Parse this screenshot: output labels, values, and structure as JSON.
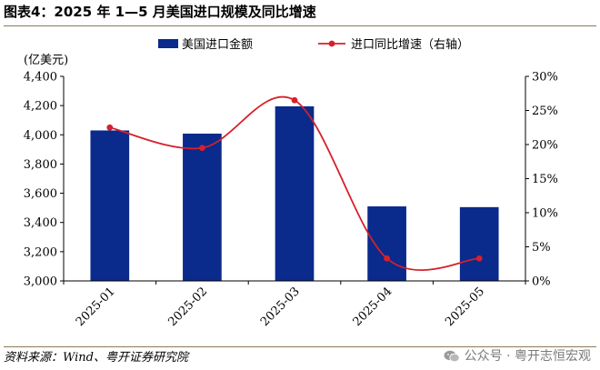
{
  "title": "图表4：2025 年 1—5 月美国进口规模及同比增速",
  "source": "资料来源：Wind、粤开证券研究院",
  "watermark": {
    "text": "公众号 · 粤开志恒宏观",
    "icon": "wechat-icon"
  },
  "colors": {
    "bar": "#0a2a8c",
    "line": "#d6202a"
  },
  "chart_data": {
    "type": "bar",
    "categories": [
      "2025-01",
      "2025-02",
      "2025-03",
      "2025-04",
      "2025-05"
    ],
    "series": [
      {
        "name": "美国进口金额",
        "type": "bar",
        "axis": "left",
        "values": [
          4030,
          4008,
          4195,
          3510,
          3505
        ]
      },
      {
        "name": "进口同比增速（右轴）",
        "type": "line",
        "axis": "right",
        "values": [
          22.5,
          19.5,
          26.5,
          3.3,
          3.3
        ]
      }
    ],
    "unit_label": "(亿美元)",
    "ylim_left": [
      3000,
      4400
    ],
    "yticks_left": [
      3000,
      3200,
      3400,
      3600,
      3800,
      4000,
      4200,
      4400
    ],
    "ytick_labels_left": [
      "3,000",
      "3,200",
      "3,400",
      "3,600",
      "3,800",
      "4,000",
      "4,200",
      "4,400"
    ],
    "ylim_right": [
      0,
      30
    ],
    "yticks_right": [
      0,
      5,
      10,
      15,
      20,
      25,
      30
    ],
    "ytick_labels_right": [
      "0%",
      "5%",
      "10%",
      "15%",
      "20%",
      "25%",
      "30%"
    ],
    "legend": [
      "美国进口金额",
      "进口同比增速（右轴）"
    ]
  }
}
